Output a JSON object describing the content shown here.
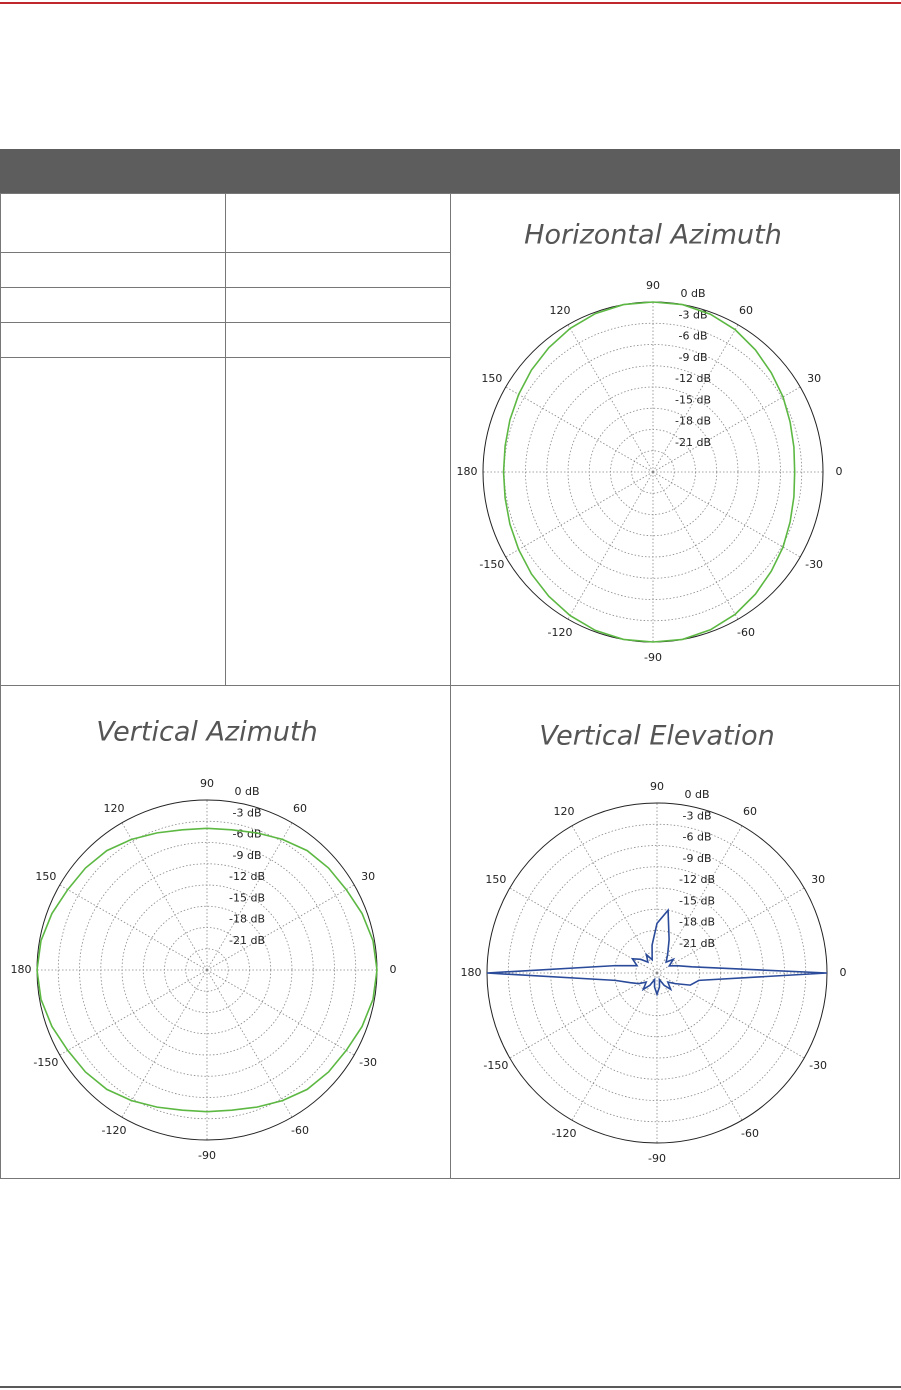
{
  "chart_data": [
    {
      "type": "polar",
      "title": "Horizontal Azimuth",
      "color": "#5cb842",
      "theta": [
        0,
        10,
        20,
        30,
        40,
        50,
        60,
        70,
        80,
        90,
        100,
        110,
        120,
        130,
        140,
        150,
        160,
        170,
        180,
        190,
        200,
        210,
        220,
        230,
        240,
        250,
        260,
        270,
        280,
        290,
        300,
        310,
        320,
        330,
        340,
        350
      ],
      "values": [
        -4,
        -3.8,
        -3.4,
        -2.8,
        -2.2,
        -1.5,
        -0.8,
        -0.3,
        0,
        0,
        0,
        -0.2,
        -0.6,
        -1.1,
        -1.6,
        -2.1,
        -2.5,
        -2.8,
        -2.9,
        -2.8,
        -2.5,
        -2.1,
        -1.6,
        -1.1,
        -0.6,
        -0.2,
        0,
        0,
        0,
        -0.3,
        -0.8,
        -1.5,
        -2.2,
        -2.8,
        -3.4,
        -3.8
      ],
      "rlim": [
        -24,
        0
      ],
      "rticks": [
        {
          "value": 0,
          "label": "0 dB"
        },
        {
          "value": -3,
          "label": "-3 dB"
        },
        {
          "value": -6,
          "label": "-6 dB"
        },
        {
          "value": -9,
          "label": "-9 dB"
        },
        {
          "value": -12,
          "label": "-12 dB"
        },
        {
          "value": -15,
          "label": "-15 dB"
        },
        {
          "value": -18,
          "label": "-18 dB"
        },
        {
          "value": -21,
          "label": "-21 dB"
        }
      ],
      "thetaticks": [
        0,
        30,
        60,
        90,
        120,
        150,
        180,
        -150,
        -120,
        -90,
        -60,
        -30
      ]
    },
    {
      "type": "polar",
      "title": "Vertical Azimuth",
      "color": "#5cb842",
      "theta": [
        0,
        10,
        20,
        30,
        40,
        50,
        60,
        70,
        80,
        90,
        100,
        110,
        120,
        130,
        140,
        150,
        160,
        170,
        180,
        190,
        200,
        210,
        220,
        230,
        240,
        250,
        260,
        270,
        280,
        290,
        300,
        310,
        320,
        330,
        340,
        350
      ],
      "values": [
        0,
        -0.2,
        -0.7,
        -1.3,
        -1.6,
        -2,
        -2.7,
        -3.4,
        -3.9,
        -4,
        -3.9,
        -3.4,
        -2.7,
        -2,
        -1.6,
        -1.3,
        -0.7,
        -0.2,
        0,
        -0.2,
        -0.7,
        -1.3,
        -1.6,
        -2,
        -2.7,
        -3.4,
        -3.9,
        -4,
        -3.9,
        -3.4,
        -2.7,
        -2,
        -1.6,
        -1.3,
        -0.7,
        -0.2
      ],
      "rlim": [
        -24,
        0
      ],
      "rticks": [
        {
          "value": 0,
          "label": "0 dB"
        },
        {
          "value": -3,
          "label": "-3 dB"
        },
        {
          "value": -6,
          "label": "-6 dB"
        },
        {
          "value": -9,
          "label": "-9 dB"
        },
        {
          "value": -12,
          "label": "-12 dB"
        },
        {
          "value": -15,
          "label": "-15 dB"
        },
        {
          "value": -18,
          "label": "-18 dB"
        },
        {
          "value": -21,
          "label": "-21 dB"
        }
      ],
      "thetaticks": [
        0,
        30,
        60,
        90,
        120,
        150,
        180,
        -150,
        -120,
        -90,
        -60,
        -30
      ]
    },
    {
      "type": "polar",
      "title": "Vertical Elevation",
      "color": "#2a4a9a",
      "theta": [
        0,
        10,
        20,
        30,
        40,
        50,
        60,
        70,
        80,
        90,
        100,
        110,
        120,
        130,
        140,
        150,
        160,
        170,
        180,
        190,
        200,
        210,
        220,
        230,
        240,
        250,
        260,
        270,
        280,
        290,
        300,
        310,
        320,
        330,
        340,
        350
      ],
      "values": [
        0,
        -19,
        -21,
        -22,
        -21,
        -22,
        -21,
        -19,
        -15,
        -17,
        -20,
        -22,
        -21,
        -22,
        -21,
        -20,
        -21,
        -18,
        0,
        -18,
        -20,
        -21,
        -22,
        -21,
        -22,
        -23,
        -22,
        -21,
        -22,
        -23,
        -22,
        -21,
        -22,
        -21,
        -19,
        -18
      ],
      "rlim": [
        -24,
        0
      ],
      "rticks": [
        {
          "value": 0,
          "label": "0 dB"
        },
        {
          "value": -3,
          "label": "-3 dB"
        },
        {
          "value": -6,
          "label": "-6 dB"
        },
        {
          "value": -9,
          "label": "-9 dB"
        },
        {
          "value": -12,
          "label": "-12 dB"
        },
        {
          "value": -15,
          "label": "-15 dB"
        },
        {
          "value": -18,
          "label": "-18 dB"
        },
        {
          "value": -21,
          "label": "-21 dB"
        }
      ],
      "thetaticks": [
        0,
        30,
        60,
        90,
        120,
        150,
        180,
        -150,
        -120,
        -90,
        -60,
        -30
      ]
    }
  ]
}
